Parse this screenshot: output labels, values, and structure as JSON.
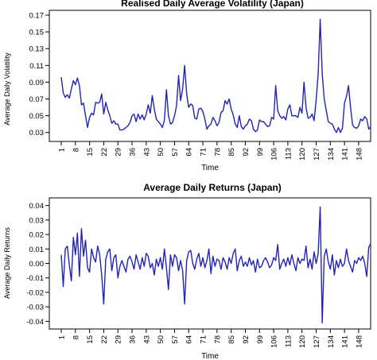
{
  "chart_data": [
    {
      "type": "line",
      "title": "Realised Daily Average Volatility (Japan)",
      "xlabel": "Time",
      "ylabel": "Average Daily Volatility",
      "x_tick_labels": [
        "1",
        "8",
        "15",
        "22",
        "29",
        "36",
        "43",
        "50",
        "57",
        "64",
        "71",
        "78",
        "85",
        "92",
        "99",
        "106",
        "113",
        "120",
        "127",
        "134",
        "141",
        "148"
      ],
      "y_ticks": [
        "0.03",
        "0.05",
        "0.07",
        "0.09",
        "0.11",
        "0.13",
        "0.15",
        "0.17"
      ],
      "xlim": [
        1,
        150
      ],
      "ylim": [
        0.025,
        0.17
      ],
      "line_color": "#2323b4",
      "series": [
        {
          "values": [
            0.096,
            0.077,
            0.072,
            0.075,
            0.071,
            0.082,
            0.092,
            0.087,
            0.095,
            0.086,
            0.063,
            0.065,
            0.05,
            0.036,
            0.048,
            0.053,
            0.051,
            0.066,
            0.065,
            0.066,
            0.076,
            0.052,
            0.066,
            0.057,
            0.05,
            0.041,
            0.044,
            0.04,
            0.04,
            0.033,
            0.033,
            0.034,
            0.036,
            0.038,
            0.042,
            0.05,
            0.052,
            0.043,
            0.052,
            0.046,
            0.051,
            0.045,
            0.052,
            0.063,
            0.053,
            0.074,
            0.058,
            0.046,
            0.043,
            0.04,
            0.036,
            0.045,
            0.081,
            0.05,
            0.04,
            0.042,
            0.05,
            0.062,
            0.098,
            0.068,
            0.082,
            0.11,
            0.076,
            0.06,
            0.064,
            0.062,
            0.047,
            0.046,
            0.058,
            0.059,
            0.055,
            0.046,
            0.034,
            0.038,
            0.04,
            0.048,
            0.044,
            0.038,
            0.042,
            0.054,
            0.056,
            0.068,
            0.064,
            0.07,
            0.058,
            0.051,
            0.04,
            0.036,
            0.05,
            0.037,
            0.034,
            0.038,
            0.04,
            0.046,
            0.044,
            0.034,
            0.031,
            0.033,
            0.045,
            0.043,
            0.043,
            0.04,
            0.037,
            0.038,
            0.048,
            0.046,
            0.086,
            0.056,
            0.05,
            0.047,
            0.049,
            0.045,
            0.058,
            0.063,
            0.05,
            0.05,
            0.05,
            0.048,
            0.06,
            0.053,
            0.09,
            0.06,
            0.047,
            0.048,
            0.052,
            0.044,
            0.069,
            0.1,
            0.165,
            0.1,
            0.07,
            0.056,
            0.043,
            0.041,
            0.04,
            0.034,
            0.03,
            0.036,
            0.03,
            0.035,
            0.065,
            0.073,
            0.086,
            0.06,
            0.039,
            0.036,
            0.035,
            0.038,
            0.046,
            0.044,
            0.049,
            0.046,
            0.034,
            0.037
          ]
        }
      ]
    },
    {
      "type": "line",
      "title": "Average Daily Returns (Japan)",
      "xlabel": "Time",
      "ylabel": "Average Daily Returns",
      "x_tick_labels": [
        "1",
        "8",
        "15",
        "22",
        "29",
        "36",
        "43",
        "50",
        "57",
        "64",
        "71",
        "78",
        "85",
        "92",
        "99",
        "106",
        "113",
        "120",
        "127",
        "134",
        "141",
        "148"
      ],
      "y_ticks": [
        "-0.04",
        "-0.03",
        "-0.02",
        "-0.01",
        "0.00",
        "0.01",
        "0.02",
        "0.03",
        "0.04"
      ],
      "xlim": [
        1,
        150
      ],
      "ylim": [
        -0.042,
        0.042
      ],
      "line_color": "#2323b4",
      "series": [
        {
          "values": [
            0.006,
            -0.016,
            0.01,
            0.012,
            -0.001,
            -0.012,
            0.018,
            0.006,
            0.021,
            -0.009,
            0.024,
            0.005,
            0.016,
            -0.003,
            -0.006,
            0.01,
            0.004,
            0.001,
            0.012,
            0.006,
            -0.008,
            -0.028,
            0.003,
            0.008,
            0.01,
            -0.005,
            0.004,
            0.006,
            -0.01,
            -0.002,
            0.002,
            -0.002,
            -0.006,
            0.003,
            0.005,
            0.001,
            -0.004,
            0.006,
            0.001,
            -0.004,
            0.004,
            -0.002,
            0.007,
            0.005,
            -0.003,
            0.0,
            -0.008,
            0.003,
            -0.002,
            0.004,
            -0.004,
            0.01,
            -0.003,
            -0.018,
            0.006,
            -0.002,
            0.006,
            0.004,
            -0.005,
            0.002,
            -0.005,
            -0.028,
            0.002,
            0.008,
            0.009,
            0.0,
            -0.004,
            0.003,
            0.007,
            -0.002,
            0.004,
            -0.003,
            0.002,
            0.01,
            -0.007,
            0.005,
            -0.002,
            0.003,
            0.002,
            -0.004,
            0.004,
            0.001,
            -0.004,
            0.004,
            0.0,
            0.007,
            0.01,
            -0.005,
            0.002,
            0.005,
            -0.002,
            0.001,
            -0.002,
            0.004,
            -0.001,
            0.002,
            -0.006,
            0.003,
            -0.003,
            -0.002,
            0.002,
            0.004,
            0.001,
            -0.003,
            -0.001,
            0.004,
            0.002,
            0.013,
            -0.004,
            0.0,
            0.003,
            -0.002,
            0.004,
            -0.001,
            0.006,
            0.0,
            -0.005,
            0.004,
            0.0,
            0.003,
            0.002,
            0.012,
            -0.003,
            0.003,
            -0.004,
            0.008,
            0.0,
            0.007,
            0.039,
            -0.041,
            0.005,
            0.01,
            0.001,
            -0.004,
            0.006,
            -0.008,
            0.002,
            -0.003,
            0.003,
            -0.002,
            0.0,
            0.01,
            0.002,
            -0.002,
            -0.006,
            0.002,
            0.0,
            0.004,
            0.002,
            0.005,
            0.0,
            -0.009,
            0.011,
            0.014
          ]
        }
      ]
    }
  ]
}
